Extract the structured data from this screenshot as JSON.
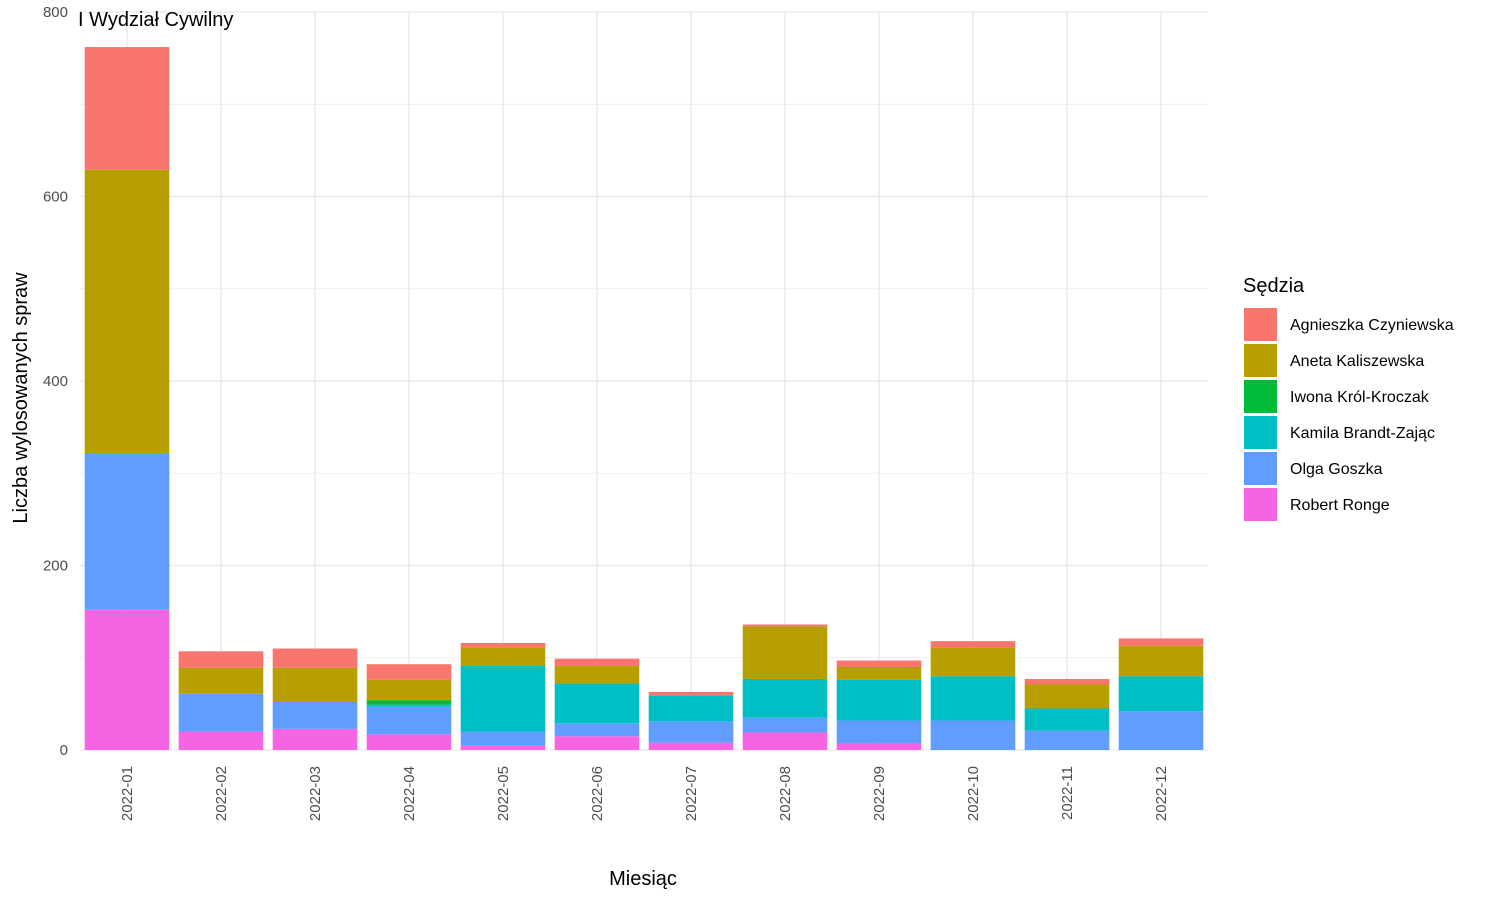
{
  "chart_data": {
    "type": "bar",
    "stacked": true,
    "title": "I Wydział Cywilny",
    "xlabel": "Miesiąc",
    "ylabel": "Liczba wylosowanych spraw",
    "ylim": [
      0,
      800
    ],
    "yticks": [
      0,
      200,
      400,
      600,
      800
    ],
    "grid": true,
    "legend_title": "Sędzia",
    "legend_position": "right",
    "categories": [
      "2022-01",
      "2022-02",
      "2022-03",
      "2022-04",
      "2022-05",
      "2022-06",
      "2022-07",
      "2022-08",
      "2022-09",
      "2022-10",
      "2022-11",
      "2022-12"
    ],
    "series": [
      {
        "name": "Agnieszka Czyniewska",
        "color": "#F8766D",
        "values": [
          133,
          18,
          21,
          17,
          5,
          8,
          4,
          2,
          7,
          7,
          6,
          8
        ]
      },
      {
        "name": "Aneta Kaliszewska",
        "color": "#B79F00",
        "values": [
          307,
          28,
          37,
          22,
          20,
          19,
          0,
          57,
          14,
          31,
          26,
          33
        ]
      },
      {
        "name": "Iwona Król-Kroczak",
        "color": "#00BA38",
        "values": [
          0,
          0,
          0,
          5,
          0,
          0,
          0,
          0,
          0,
          0,
          0,
          0
        ]
      },
      {
        "name": "Kamila Brandt-Zając",
        "color": "#00BFC4",
        "values": [
          0,
          0,
          0,
          2,
          71,
          43,
          28,
          42,
          44,
          48,
          24,
          38
        ]
      },
      {
        "name": "Olga Goszka",
        "color": "#619CFF",
        "values": [
          170,
          41,
          29,
          30,
          15,
          14,
          23,
          16,
          25,
          32,
          21,
          42
        ]
      },
      {
        "name": "Robert Ronge",
        "color": "#F564E3",
        "values": [
          152,
          20,
          23,
          17,
          5,
          15,
          8,
          19,
          7,
          0,
          0,
          0
        ]
      }
    ]
  }
}
